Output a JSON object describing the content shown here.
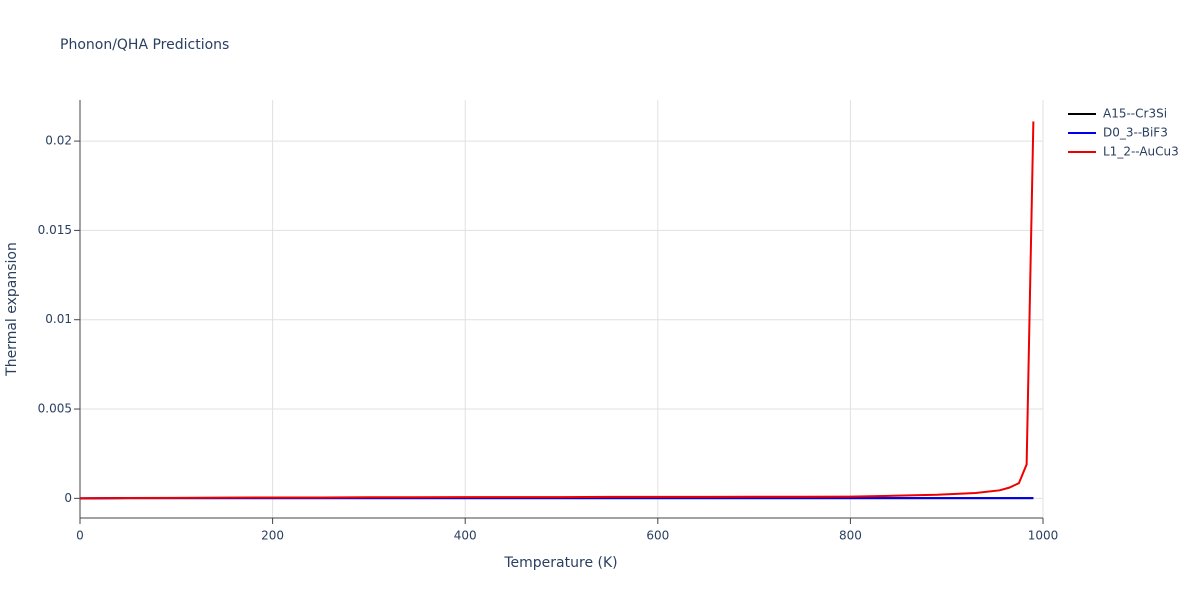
{
  "chart_data": {
    "type": "line",
    "title": "Phonon/QHA Predictions",
    "x_label": "Temperature (K)",
    "y_label": "Thermal expansion",
    "x": [
      0,
      50,
      100,
      150,
      200,
      250,
      300,
      350,
      400,
      450,
      500,
      550,
      600,
      650,
      700,
      750,
      800,
      850,
      890,
      930,
      955,
      965,
      975,
      983,
      990
    ],
    "series": [
      {
        "name": "A15--Cr3Si",
        "color": "#000000",
        "values": [
          0,
          1e-05,
          1e-05,
          1e-05,
          1e-05,
          1e-05,
          1e-05,
          1e-05,
          1e-05,
          1e-05,
          1e-05,
          1e-05,
          1e-05,
          1e-05,
          1e-05,
          1e-05,
          1e-05,
          1e-05,
          1e-05,
          1e-05,
          1e-05,
          1e-05,
          1e-05,
          1e-05,
          1e-05
        ]
      },
      {
        "name": "D0_3--BiF3",
        "color": "#0000ee",
        "values": [
          0,
          1e-05,
          1e-05,
          1e-05,
          1e-05,
          1e-05,
          1e-05,
          1e-05,
          1e-05,
          1e-05,
          1e-05,
          1e-05,
          1e-05,
          1e-05,
          1e-05,
          1e-05,
          1e-05,
          1e-05,
          1e-05,
          1e-05,
          1e-05,
          1e-05,
          1e-05,
          1e-05,
          1e-05
        ]
      },
      {
        "name": "L1_2--AuCu3",
        "color": "#ee0000",
        "values": [
          0,
          2e-05,
          3e-05,
          4e-05,
          5e-05,
          5e-05,
          6e-05,
          6e-05,
          7e-05,
          7e-05,
          7e-05,
          8e-05,
          8e-05,
          8e-05,
          9e-05,
          9e-05,
          0.0001,
          0.00015,
          0.0002,
          0.0003,
          0.00045,
          0.0006,
          0.00085,
          0.0019,
          0.0211
        ]
      }
    ],
    "xlim": [
      0,
      1000
    ],
    "xticks": [
      0,
      200,
      400,
      600,
      800,
      1000
    ],
    "ylim": [
      -0.0011,
      0.0223
    ],
    "yticks": [
      0,
      0.005,
      0.01,
      0.015,
      0.02
    ],
    "grid": true,
    "legend": "top-right"
  }
}
